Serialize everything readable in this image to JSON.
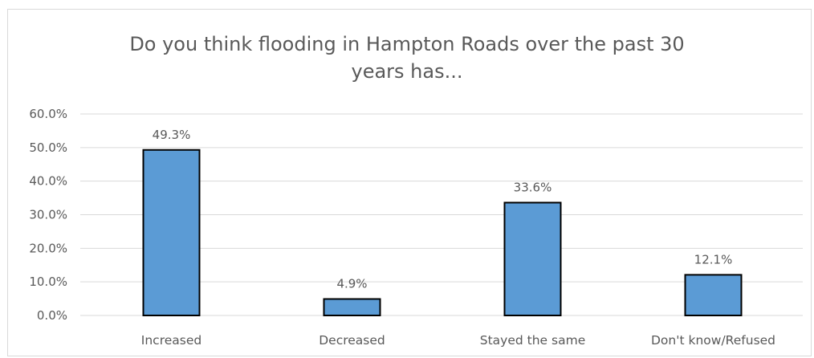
{
  "chart_data": {
    "type": "bar",
    "title": "Do you think flooding in Hampton Roads over the past 30\nyears has...",
    "xlabel": "",
    "ylabel": "",
    "categories": [
      "Increased",
      "Decreased",
      "Stayed the same",
      "Don't know/Refused"
    ],
    "values": [
      49.3,
      4.9,
      33.6,
      12.1
    ],
    "data_labels": [
      "49.3%",
      "4.9%",
      "33.6%",
      "12.1%"
    ],
    "ylim": [
      0,
      60
    ],
    "yticks": [
      0,
      10,
      20,
      30,
      40,
      50,
      60
    ],
    "ytick_labels": [
      "0.0%",
      "10.0%",
      "20.0%",
      "30.0%",
      "40.0%",
      "50.0%",
      "60.0%"
    ],
    "grid": true,
    "legend": "none",
    "colors": {
      "bar_fill": "#5b9bd5",
      "bar_stroke": "#000000",
      "gridline": "#d9d9d9",
      "text": "#595959"
    }
  }
}
